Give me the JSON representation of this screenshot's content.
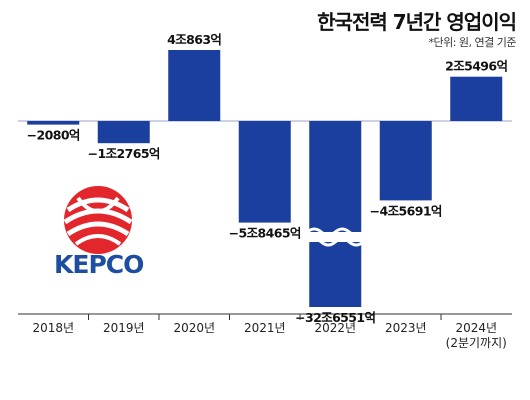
{
  "title": "한국전력 7년간 영업이익",
  "unit_note": "*단위: 원, 연결 기준",
  "logo_text": "KEPCO",
  "colors": {
    "bar": "#1b3f9e",
    "axis": "#333333",
    "text": "#1a1a1a"
  },
  "chart_data": {
    "type": "bar",
    "title": "한국전력 7년간 영업이익",
    "categories": [
      "2018년",
      "2019년",
      "2020년",
      "2021년",
      "2022년",
      "2023년",
      "2024년\n(2분기까지)"
    ],
    "values": [
      -2080,
      -12765,
      40863,
      -58465,
      -326551,
      -45691,
      25496
    ],
    "value_labels": [
      "−2080억",
      "−1조2765억",
      "4조863억",
      "−5조8465억",
      "−32조6551억",
      "−4조5691억",
      "2조5496억"
    ],
    "value_unit": "억원",
    "axis_break": {
      "category": "2022년",
      "note": "wavy break on bar"
    },
    "grid": false,
    "legend": "none"
  }
}
